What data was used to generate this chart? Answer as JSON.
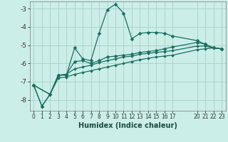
{
  "xlabel": "Humidex (Indice chaleur)",
  "background_color": "#cceee8",
  "grid_color": "#aad4cc",
  "line_color": "#1a6e60",
  "xlim": [
    -0.5,
    23.5
  ],
  "ylim": [
    -8.6,
    -2.6
  ],
  "yticks": [
    -8,
    -7,
    -6,
    -5,
    -4,
    -3
  ],
  "xtick_positions": [
    0,
    1,
    2,
    3,
    4,
    5,
    6,
    7,
    8,
    9,
    10,
    11,
    12,
    13,
    14,
    15,
    16,
    17,
    20,
    21,
    22,
    23
  ],
  "xtick_labels": [
    "0",
    "1",
    "2",
    "3",
    "4",
    "5",
    "6",
    "7",
    "8",
    "9",
    "10",
    "11",
    "12",
    "13",
    "14",
    "15",
    "16",
    "17",
    "20",
    "21",
    "22",
    "23"
  ],
  "line1_x": [
    0,
    1,
    2,
    3,
    4,
    5,
    6,
    7,
    8,
    9,
    10,
    11,
    12,
    13,
    14,
    15,
    16,
    17,
    20,
    21,
    22,
    23
  ],
  "line1_y": [
    -7.2,
    -8.35,
    -7.7,
    -6.65,
    -6.65,
    -5.15,
    -5.75,
    -5.85,
    -4.35,
    -3.05,
    -2.75,
    -3.25,
    -4.65,
    -4.35,
    -4.3,
    -4.3,
    -4.35,
    -4.5,
    -4.75,
    -4.95,
    -5.15,
    -5.2
  ],
  "line2_x": [
    0,
    1,
    2,
    3,
    4,
    5,
    6,
    7,
    8,
    9,
    10,
    11,
    12,
    13,
    14,
    15,
    16,
    17,
    20,
    21,
    22,
    23
  ],
  "line2_y": [
    -7.2,
    -8.35,
    -7.7,
    -6.65,
    -6.6,
    -5.9,
    -5.85,
    -6.0,
    -5.85,
    -5.65,
    -5.6,
    -5.55,
    -5.5,
    -5.4,
    -5.35,
    -5.3,
    -5.2,
    -5.1,
    -4.85,
    -4.95,
    -5.15,
    -5.2
  ],
  "line3_x": [
    0,
    2,
    3,
    4,
    5,
    6,
    7,
    8,
    9,
    10,
    11,
    12,
    13,
    14,
    15,
    16,
    17,
    20,
    21,
    22,
    23
  ],
  "line3_y": [
    -7.2,
    -7.7,
    -6.65,
    -6.6,
    -6.3,
    -6.2,
    -6.1,
    -5.95,
    -5.85,
    -5.75,
    -5.65,
    -5.6,
    -5.5,
    -5.45,
    -5.4,
    -5.35,
    -5.3,
    -5.05,
    -5.05,
    -5.15,
    -5.2
  ],
  "line4_x": [
    0,
    2,
    3,
    4,
    5,
    6,
    7,
    8,
    9,
    10,
    11,
    12,
    13,
    14,
    15,
    16,
    17,
    20,
    21,
    22,
    23
  ],
  "line4_y": [
    -7.2,
    -7.7,
    -6.8,
    -6.75,
    -6.6,
    -6.5,
    -6.4,
    -6.3,
    -6.2,
    -6.1,
    -6.0,
    -5.9,
    -5.8,
    -5.72,
    -5.65,
    -5.6,
    -5.55,
    -5.25,
    -5.2,
    -5.15,
    -5.2
  ]
}
